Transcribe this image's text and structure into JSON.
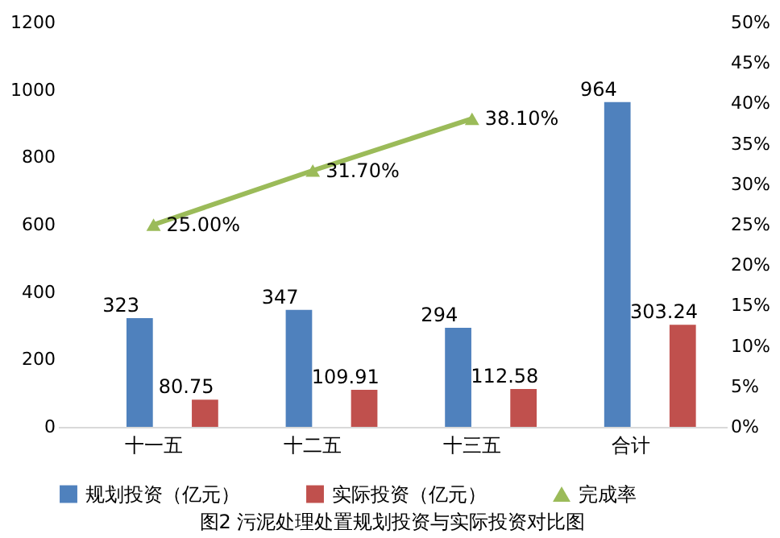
{
  "chart_data": {
    "type": "bar",
    "categories": [
      "十一五",
      "十二五",
      "十三五",
      "合计"
    ],
    "series": [
      {
        "name": "规划投资（亿元）",
        "color": "#4f81bd",
        "values": [
          323,
          347,
          294,
          964
        ],
        "value_labels": [
          "323",
          "347",
          "294",
          "964"
        ]
      },
      {
        "name": "实际投资（亿元）",
        "color": "#c0504d",
        "values": [
          80.75,
          109.91,
          112.58,
          303.24
        ],
        "value_labels": [
          "80.75",
          "109.91",
          "112.58",
          "303.24"
        ]
      },
      {
        "name": "完成率",
        "color": "#9bbb59",
        "type": "line",
        "axis": "y2",
        "marker": "triangle",
        "values": [
          25,
          31.7,
          38.1,
          null
        ],
        "value_labels": [
          "25.00%",
          "31.70%",
          "38.10%",
          null
        ]
      }
    ],
    "ylim": [
      0,
      1200
    ],
    "yticks": [
      0,
      200,
      400,
      600,
      800,
      1000,
      1200
    ],
    "y2lim": [
      0,
      50
    ],
    "y2ticks": [
      {
        "value": 0,
        "label": "0%"
      },
      {
        "value": 5,
        "label": "5%"
      },
      {
        "value": 10,
        "label": "10%"
      },
      {
        "value": 15,
        "label": "15%"
      },
      {
        "value": 20,
        "label": "20%"
      },
      {
        "value": 25,
        "label": "25%"
      },
      {
        "value": 30,
        "label": "30%"
      },
      {
        "value": 35,
        "label": "35%"
      },
      {
        "value": 40,
        "label": "40%"
      },
      {
        "value": 45,
        "label": "45%"
      },
      {
        "value": 50,
        "label": "50%"
      }
    ],
    "grid": false,
    "legend": "bottom",
    "annotations": [
      "图2 污泥处理处置规划投资与实际投资对比图"
    ]
  }
}
